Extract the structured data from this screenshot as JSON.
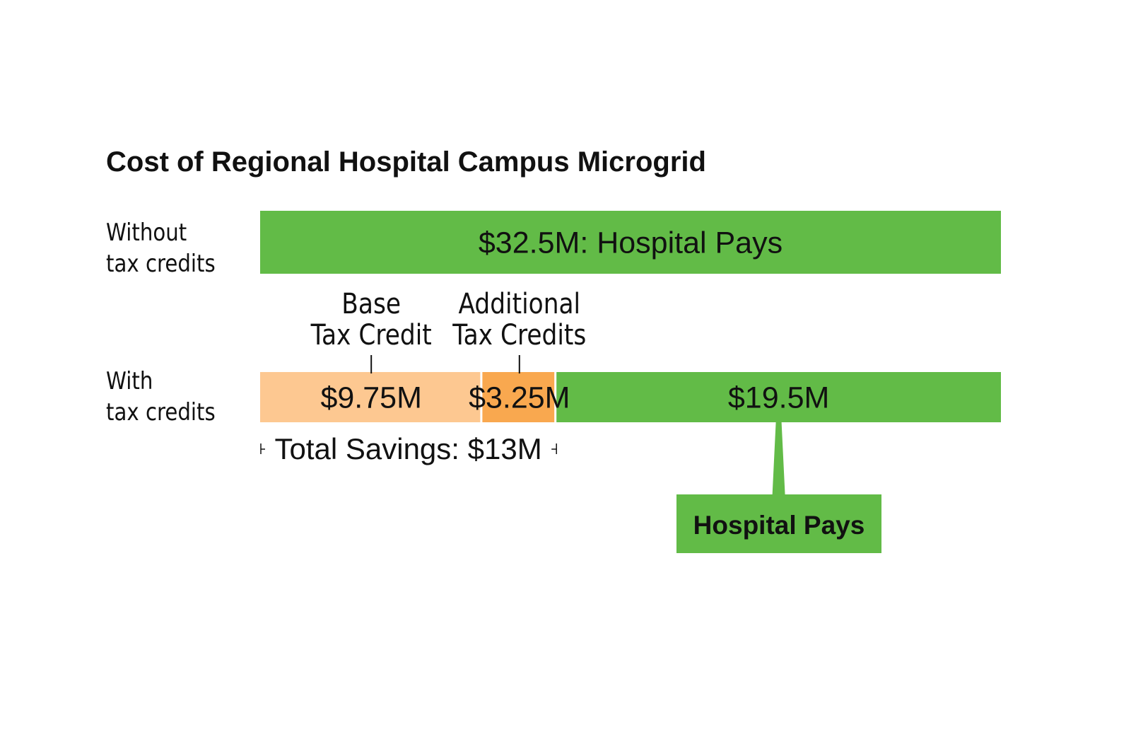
{
  "chart_data": {
    "type": "bar",
    "orientation": "horizontal-stacked",
    "title": "Cost of Regional Hospital Campus Microgrid",
    "unit": "$M",
    "xlim": [
      0,
      32.5
    ],
    "categories": [
      "Without\ntax credits",
      "With\ntax credits"
    ],
    "rows": [
      {
        "category_lines": [
          "Without",
          "tax credits"
        ],
        "segments": [
          {
            "value": 32.5,
            "label": "$32.5M: Hospital Pays",
            "color": "#62bb47"
          }
        ]
      },
      {
        "category_lines": [
          "With",
          "tax credits"
        ],
        "segments": [
          {
            "value": 9.75,
            "label": "$9.75M",
            "color": "#fdc891",
            "annotation": [
              "Base",
              "Tax Credit"
            ]
          },
          {
            "value": 3.25,
            "label": "$3.25M",
            "color": "#f9a84f",
            "annotation": [
              "Additional",
              "Tax Credits"
            ]
          },
          {
            "value": 19.5,
            "label": "$19.5M",
            "color": "#62bb47",
            "callout": "Hospital Pays"
          }
        ]
      }
    ],
    "bracket_label": "Total Savings: $13M",
    "bracket_value": 13,
    "legend": "none",
    "grid": false
  }
}
